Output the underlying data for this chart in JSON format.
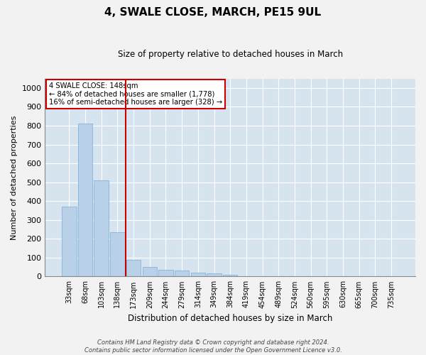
{
  "title": "4, SWALE CLOSE, MARCH, PE15 9UL",
  "subtitle": "Size of property relative to detached houses in March",
  "xlabel": "Distribution of detached houses by size in March",
  "ylabel": "Number of detached properties",
  "bar_color": "#b8d0e8",
  "bar_edge_color": "#7aadd4",
  "background_color": "#d6e4f0",
  "grid_color": "#ffffff",
  "fig_background": "#f2f2f2",
  "categories": [
    "33sqm",
    "68sqm",
    "103sqm",
    "138sqm",
    "173sqm",
    "209sqm",
    "244sqm",
    "279sqm",
    "314sqm",
    "349sqm",
    "384sqm",
    "419sqm",
    "454sqm",
    "489sqm",
    "524sqm",
    "560sqm",
    "595sqm",
    "630sqm",
    "665sqm",
    "700sqm",
    "735sqm"
  ],
  "values": [
    370,
    810,
    510,
    235,
    90,
    50,
    35,
    30,
    20,
    15,
    10,
    0,
    0,
    0,
    0,
    0,
    0,
    0,
    0,
    0,
    0
  ],
  "ylim": [
    0,
    1050
  ],
  "yticks": [
    0,
    100,
    200,
    300,
    400,
    500,
    600,
    700,
    800,
    900,
    1000
  ],
  "property_line_x": 3.5,
  "annotation_title": "4 SWALE CLOSE: 148sqm",
  "annotation_line1": "← 84% of detached houses are smaller (1,778)",
  "annotation_line2": "16% of semi-detached houses are larger (328) →",
  "annotation_box_color": "#ffffff",
  "annotation_border_color": "#cc0000",
  "vline_color": "#cc0000",
  "footer_line1": "Contains HM Land Registry data © Crown copyright and database right 2024.",
  "footer_line2": "Contains public sector information licensed under the Open Government Licence v3.0."
}
